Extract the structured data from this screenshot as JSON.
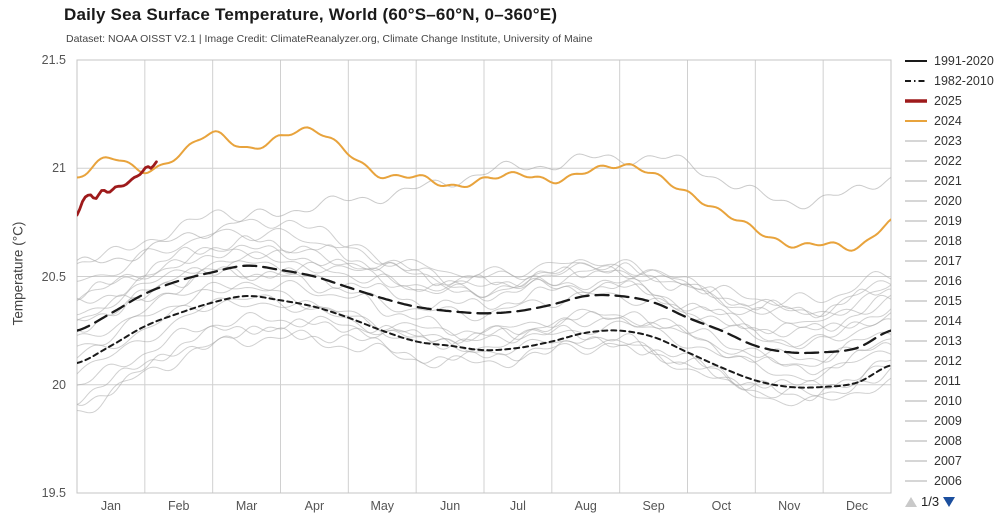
{
  "header": {
    "title": "Daily Sea Surface Temperature, World (60°S–60°N, 0–360°E)",
    "subtitle": "Dataset: NOAA OISST V2.1 | Image Credit: ClimateReanalyzer.org, Climate Change Institute, University of Maine"
  },
  "axes": {
    "y_label": "Temperature (°C)",
    "y_ticks": [
      "21.5",
      "21",
      "20.5",
      "20",
      "19.5"
    ],
    "months": [
      "Jan",
      "Feb",
      "Mar",
      "Apr",
      "May",
      "Jun",
      "Jul",
      "Aug",
      "Sep",
      "Oct",
      "Nov",
      "Dec"
    ]
  },
  "legend": {
    "items": [
      {
        "label": "1991-2020",
        "color": "#1a1a1a",
        "style": "solid",
        "width": 2
      },
      {
        "label": "1982-2010",
        "color": "#1a1a1a",
        "style": "dashdot",
        "width": 2
      },
      {
        "label": "2025",
        "color": "#9e1a1b",
        "style": "solid",
        "width": 3.5
      },
      {
        "label": "2024",
        "color": "#e8a33c",
        "style": "solid",
        "width": 2
      },
      {
        "label": "2023",
        "color": "#c9c9c9",
        "style": "solid",
        "width": 1.5
      },
      {
        "label": "2022",
        "color": "#c9c9c9",
        "style": "solid",
        "width": 1.5
      },
      {
        "label": "2021",
        "color": "#c9c9c9",
        "style": "solid",
        "width": 1.5
      },
      {
        "label": "2020",
        "color": "#c9c9c9",
        "style": "solid",
        "width": 1.5
      },
      {
        "label": "2019",
        "color": "#c9c9c9",
        "style": "solid",
        "width": 1.5
      },
      {
        "label": "2018",
        "color": "#c9c9c9",
        "style": "solid",
        "width": 1.5
      },
      {
        "label": "2017",
        "color": "#c9c9c9",
        "style": "solid",
        "width": 1.5
      },
      {
        "label": "2016",
        "color": "#c9c9c9",
        "style": "solid",
        "width": 1.5
      },
      {
        "label": "2015",
        "color": "#c9c9c9",
        "style": "solid",
        "width": 1.5
      },
      {
        "label": "2014",
        "color": "#c9c9c9",
        "style": "solid",
        "width": 1.5
      },
      {
        "label": "2013",
        "color": "#c9c9c9",
        "style": "solid",
        "width": 1.5
      },
      {
        "label": "2012",
        "color": "#c9c9c9",
        "style": "solid",
        "width": 1.5
      },
      {
        "label": "2011",
        "color": "#c9c9c9",
        "style": "solid",
        "width": 1.5
      },
      {
        "label": "2010",
        "color": "#c9c9c9",
        "style": "solid",
        "width": 1.5
      },
      {
        "label": "2009",
        "color": "#c9c9c9",
        "style": "solid",
        "width": 1.5
      },
      {
        "label": "2008",
        "color": "#c9c9c9",
        "style": "solid",
        "width": 1.5
      },
      {
        "label": "2007",
        "color": "#c9c9c9",
        "style": "solid",
        "width": 1.5
      },
      {
        "label": "2006",
        "color": "#c9c9c9",
        "style": "solid",
        "width": 1.5
      }
    ],
    "pager": {
      "label": "1/3",
      "up_color": "#c9c9c9",
      "down_color": "#1c4f9e"
    }
  },
  "chart_data": {
    "type": "line",
    "title": "Daily Sea Surface Temperature, World (60°S–60°N, 0–360°E)",
    "ylabel": "Temperature (°C)",
    "ylim": [
      19.5,
      21.5
    ],
    "x_unit": "months, 0 = Jan 1 to 12 = Dec 31; values at month starts unless xs given",
    "grid": true,
    "legend_position": "right",
    "series": [
      {
        "name": "2006",
        "color": "#a9a9a9",
        "width": 1,
        "opacity": 0.55,
        "dash": "none",
        "wiggle": 0.022,
        "values": [
          20.05,
          20.22,
          20.36,
          20.38,
          20.3,
          20.22,
          20.18,
          20.24,
          20.27,
          20.2,
          20.08,
          20.05,
          20.16
        ]
      },
      {
        "name": "2007",
        "color": "#a9a9a9",
        "width": 1,
        "opacity": 0.55,
        "dash": "none",
        "wiggle": 0.02,
        "values": [
          20.2,
          20.35,
          20.45,
          20.42,
          20.31,
          20.21,
          20.16,
          20.19,
          20.19,
          20.08,
          19.96,
          19.92,
          20.02
        ]
      },
      {
        "name": "2008",
        "color": "#a9a9a9",
        "width": 1,
        "opacity": 0.55,
        "dash": "none",
        "wiggle": 0.024,
        "values": [
          19.88,
          20.05,
          20.18,
          20.22,
          20.18,
          20.12,
          20.1,
          20.16,
          20.18,
          20.1,
          19.98,
          19.96,
          20.08
        ]
      },
      {
        "name": "2009",
        "color": "#a9a9a9",
        "width": 1,
        "opacity": 0.55,
        "dash": "none",
        "wiggle": 0.021,
        "values": [
          20.0,
          20.15,
          20.28,
          20.3,
          20.27,
          20.21,
          20.2,
          20.27,
          20.31,
          20.25,
          20.15,
          20.13,
          20.25
        ]
      },
      {
        "name": "2010",
        "color": "#a9a9a9",
        "width": 1,
        "opacity": 0.55,
        "dash": "none",
        "wiggle": 0.023,
        "values": [
          20.28,
          20.42,
          20.52,
          20.5,
          20.42,
          20.3,
          20.24,
          20.24,
          20.21,
          20.1,
          19.99,
          19.96,
          20.06
        ]
      },
      {
        "name": "2011",
        "color": "#a9a9a9",
        "width": 1,
        "opacity": 0.55,
        "dash": "none",
        "wiggle": 0.022,
        "values": [
          19.92,
          20.07,
          20.21,
          20.24,
          20.21,
          20.14,
          20.12,
          20.17,
          20.19,
          20.11,
          20.01,
          20.0,
          20.11
        ]
      },
      {
        "name": "2012",
        "color": "#a9a9a9",
        "width": 1,
        "opacity": 0.55,
        "dash": "none",
        "wiggle": 0.02,
        "values": [
          19.94,
          20.1,
          20.24,
          20.27,
          20.27,
          20.23,
          20.22,
          20.28,
          20.31,
          20.23,
          20.11,
          20.08,
          20.18
        ]
      },
      {
        "name": "2013",
        "color": "#a9a9a9",
        "width": 1,
        "opacity": 0.55,
        "dash": "none",
        "wiggle": 0.023,
        "values": [
          20.12,
          20.26,
          20.38,
          20.38,
          20.32,
          20.26,
          20.24,
          20.3,
          20.32,
          20.24,
          20.13,
          20.11,
          20.22
        ]
      },
      {
        "name": "2014",
        "color": "#a9a9a9",
        "width": 1,
        "opacity": 0.55,
        "dash": "none",
        "wiggle": 0.021,
        "values": [
          20.17,
          20.31,
          20.44,
          20.45,
          20.41,
          20.35,
          20.33,
          20.39,
          20.41,
          20.33,
          20.22,
          20.2,
          20.31
        ]
      },
      {
        "name": "2015",
        "color": "#a9a9a9",
        "width": 1,
        "opacity": 0.55,
        "dash": "none",
        "wiggle": 0.022,
        "values": [
          20.31,
          20.43,
          20.54,
          20.55,
          20.51,
          20.45,
          20.43,
          20.49,
          20.53,
          20.47,
          20.4,
          20.4,
          20.51
        ]
      },
      {
        "name": "2016",
        "color": "#a9a9a9",
        "width": 1,
        "opacity": 0.55,
        "dash": "none",
        "wiggle": 0.024,
        "values": [
          20.54,
          20.67,
          20.77,
          20.75,
          20.65,
          20.52,
          20.44,
          20.46,
          20.45,
          20.35,
          20.23,
          20.21,
          20.31
        ]
      },
      {
        "name": "2017",
        "color": "#a9a9a9",
        "width": 1,
        "opacity": 0.55,
        "dash": "none",
        "wiggle": 0.021,
        "values": [
          20.37,
          20.49,
          20.61,
          20.61,
          20.54,
          20.45,
          20.42,
          20.46,
          20.47,
          20.37,
          20.27,
          20.25,
          20.35
        ]
      },
      {
        "name": "2018",
        "color": "#a9a9a9",
        "width": 1,
        "opacity": 0.55,
        "dash": "none",
        "wiggle": 0.022,
        "values": [
          20.27,
          20.39,
          20.51,
          20.51,
          20.47,
          20.39,
          20.37,
          20.43,
          20.45,
          20.37,
          20.27,
          20.27,
          20.39
        ]
      },
      {
        "name": "2019",
        "color": "#a9a9a9",
        "width": 1,
        "opacity": 0.55,
        "dash": "none",
        "wiggle": 0.023,
        "values": [
          20.41,
          20.53,
          20.64,
          20.65,
          20.59,
          20.51,
          20.47,
          20.51,
          20.53,
          20.45,
          20.37,
          20.35,
          20.45
        ]
      },
      {
        "name": "2020",
        "color": "#a9a9a9",
        "width": 1,
        "opacity": 0.55,
        "dash": "none",
        "wiggle": 0.021,
        "values": [
          20.47,
          20.59,
          20.69,
          20.69,
          20.63,
          20.55,
          20.51,
          20.55,
          20.55,
          20.45,
          20.33,
          20.3,
          20.39
        ]
      },
      {
        "name": "2021",
        "color": "#a9a9a9",
        "width": 1,
        "opacity": 0.55,
        "dash": "none",
        "wiggle": 0.022,
        "values": [
          20.34,
          20.45,
          20.57,
          20.57,
          20.53,
          20.47,
          20.45,
          20.51,
          20.53,
          20.45,
          20.35,
          20.33,
          20.45
        ]
      },
      {
        "name": "2022",
        "color": "#a9a9a9",
        "width": 1,
        "opacity": 0.55,
        "dash": "none",
        "wiggle": 0.021,
        "values": [
          20.41,
          20.51,
          20.61,
          20.61,
          20.57,
          20.51,
          20.49,
          20.53,
          20.55,
          20.47,
          20.37,
          20.35,
          20.47
        ]
      },
      {
        "name": "2023",
        "color": "#a9a9a9",
        "width": 1,
        "opacity": 0.6,
        "dash": "none",
        "wiggle": 0.022,
        "values": [
          20.55,
          20.62,
          20.72,
          20.8,
          20.85,
          20.9,
          20.98,
          21.02,
          21.05,
          21.02,
          20.88,
          20.85,
          20.96
        ]
      },
      {
        "name": "1982-2010",
        "color": "#1a1a1a",
        "width": 2,
        "opacity": 1,
        "dash": "short",
        "wiggle": 0,
        "values": [
          20.1,
          20.18,
          20.27,
          20.33,
          20.38,
          20.41,
          20.39,
          20.36,
          20.31,
          20.25,
          20.2,
          20.18,
          20.16,
          20.17,
          20.2,
          20.24,
          20.25,
          20.22,
          20.15,
          20.08,
          20.02,
          19.99,
          19.99,
          20.01,
          20.09
        ]
      },
      {
        "name": "1991-2020",
        "color": "#1a1a1a",
        "width": 2.3,
        "opacity": 1,
        "dash": "long",
        "wiggle": 0,
        "values": [
          20.25,
          20.33,
          20.42,
          20.48,
          20.52,
          20.55,
          20.53,
          20.5,
          20.45,
          20.4,
          20.36,
          20.34,
          20.33,
          20.34,
          20.37,
          20.41,
          20.41,
          20.38,
          20.31,
          20.25,
          20.18,
          20.15,
          20.15,
          20.17,
          20.25
        ]
      },
      {
        "name": "2024",
        "color": "#e8a33c",
        "width": 2,
        "opacity": 1,
        "dash": "none",
        "wiggle": 0.015,
        "values": [
          20.95,
          21.04,
          21.0,
          21.06,
          21.15,
          21.1,
          21.15,
          21.16,
          21.08,
          20.97,
          20.95,
          20.92,
          20.96,
          20.96,
          20.94,
          21.0,
          21.0,
          20.97,
          20.9,
          20.79,
          20.71,
          20.66,
          20.65,
          20.62,
          20.77
        ]
      },
      {
        "name": "2025",
        "color": "#9e1a1b",
        "width": 2.8,
        "opacity": 1,
        "dash": "none",
        "wiggle": 0.007,
        "xs": [
          0,
          0.1,
          0.2,
          0.27,
          0.37,
          0.47,
          0.57,
          0.7,
          0.83,
          0.93,
          1.03,
          1.1,
          1.17
        ],
        "values": [
          20.78,
          20.86,
          20.88,
          20.86,
          20.9,
          20.89,
          20.92,
          20.93,
          20.96,
          20.97,
          21.0,
          20.99,
          21.02
        ]
      }
    ]
  }
}
